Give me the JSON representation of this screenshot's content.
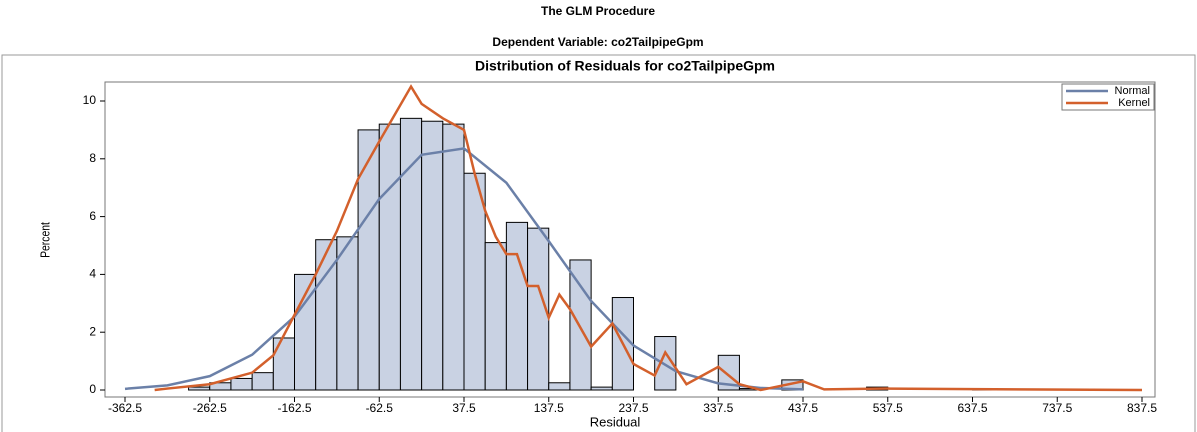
{
  "page_title": "The GLM Procedure",
  "page_subtitle": "Dependent Variable: co2TailpipeGpm",
  "chart_data": {
    "type": "histogram",
    "title": "Distribution of Residuals for co2TailpipeGpm",
    "x_label": "Residual",
    "y_label": "Percent",
    "color": "#c9d2e3",
    "bins": [
      -287.5,
      -262.5,
      -237.5,
      -212.5,
      -187.5,
      -162.5,
      -137.5,
      -112.5,
      -87.5,
      -62.5,
      -37.5,
      -12.5,
      12.5,
      37.5,
      62.5,
      87.5,
      112.5,
      137.5,
      162.5,
      187.5,
      212.5,
      237.5,
      262.5,
      287.5,
      312.5,
      337.5,
      362.5,
      387.5,
      412.5,
      437.5,
      462.5,
      487.5,
      512.5,
      537.5,
      562.5,
      587.5,
      612.5,
      637.5,
      662.5
    ],
    "values": [
      0.1,
      0.25,
      0.4,
      0.6,
      1.8,
      4.0,
      5.2,
      5.3,
      9.0,
      9.2,
      9.4,
      9.3,
      9.2,
      7.5,
      5.1,
      5.8,
      5.6,
      0.25,
      4.5,
      0.1,
      3.2,
      0,
      1.85,
      0,
      0,
      1.2,
      0.05,
      0,
      0.35,
      0,
      0,
      0,
      0.1,
      0,
      0,
      0,
      0,
      0.05
    ],
    "series": [
      {
        "name": "Normal",
        "color": "#6b80a8",
        "x": [
          -362.5,
          -312.5,
          -262.5,
          -212.5,
          -162.5,
          -112.5,
          -62.5,
          -12.5,
          37.5,
          87.5,
          137.5,
          187.5,
          237.5,
          287.5,
          337.5,
          387.5,
          437.5
        ],
        "values": [
          0.04,
          0.16,
          0.48,
          1.22,
          2.54,
          4.5,
          6.61,
          8.14,
          8.36,
          7.17,
          5.15,
          3.08,
          1.54,
          0.65,
          0.23,
          0.07,
          0.02
        ]
      },
      {
        "name": "Kernel",
        "color": "#d3602c",
        "x": [
          -327.5,
          -312.5,
          -262.5,
          -212.5,
          -187.5,
          -162.5,
          -137.5,
          -112.5,
          -87.5,
          -62.5,
          -25,
          -12.5,
          12.5,
          37.5,
          50,
          62.5,
          75,
          87.5,
          100,
          112.5,
          125,
          137.5,
          150,
          162.5,
          187.5,
          212.5,
          237.5,
          262.5,
          275,
          300,
          337.5,
          362.5,
          387.5,
          437.5,
          462.5,
          537.5,
          637.5,
          837.5
        ],
        "values": [
          0,
          0.05,
          0.2,
          0.6,
          1.2,
          2.6,
          4.0,
          5.5,
          7.3,
          8.6,
          10.5,
          9.9,
          9.4,
          9.0,
          7.5,
          6.2,
          5.3,
          4.7,
          4.7,
          3.6,
          3.6,
          2.5,
          3.3,
          2.8,
          1.5,
          2.3,
          0.9,
          0.5,
          1.3,
          0.2,
          0.8,
          0.2,
          0,
          0.3,
          0.02,
          0.05,
          0.03,
          0
        ]
      }
    ],
    "xlim": [
      -362.5,
      837.5
    ],
    "xticks": [
      -362.5,
      -262.5,
      -162.5,
      -62.5,
      37.5,
      137.5,
      237.5,
      337.5,
      437.5,
      537.5,
      637.5,
      737.5,
      837.5
    ],
    "ylim": [
      0,
      10
    ],
    "yticks": [
      0,
      2,
      4,
      6,
      8,
      10
    ],
    "legend": "top-right"
  }
}
